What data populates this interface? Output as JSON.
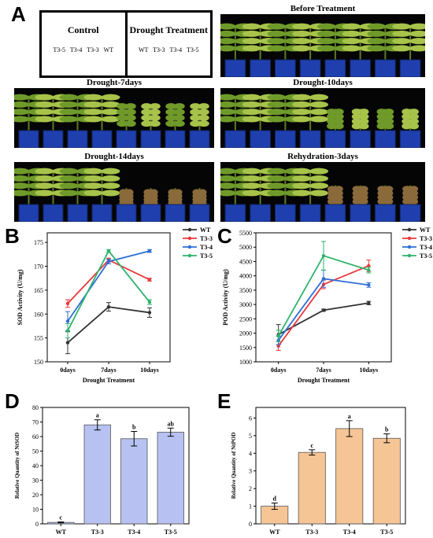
{
  "panel_letters": {
    "a": "A",
    "b": "B",
    "c": "C",
    "d": "D",
    "e": "E"
  },
  "panel_a": {
    "control_title": "Control",
    "control_order": "T3-5 T3-4 T3-3 WT",
    "drought_title": "Drought Treatment",
    "drought_order": "WT T3-3 T3-4 T3-5",
    "photos": [
      {
        "title": "Before Treatment",
        "wilt_right": 0.0
      },
      {
        "title": "Drought-7days",
        "wilt_right": 0.2
      },
      {
        "title": "Drought-10days",
        "wilt_right": 0.45
      },
      {
        "title": "Drought-14days",
        "wilt_right": 0.75
      },
      {
        "title": "Rehydration-3days",
        "wilt_right": 0.6
      }
    ],
    "colors": {
      "background": "#050505",
      "pot": "#1f3fae",
      "pot_dark": "#11235e",
      "leaf": "#6f9a2a",
      "leaf_light": "#a7c34a",
      "dead": "#8a6a3a"
    }
  },
  "chart_data": [
    {
      "panel": "B",
      "type": "line",
      "x": [
        "0days",
        "7days",
        "10days"
      ],
      "xlabel": "Drought Treatment",
      "ylabel": "SOD Activity (U/mg)",
      "ylim": [
        150,
        177
      ],
      "yticks": [
        150,
        155,
        160,
        165,
        170,
        175
      ],
      "legend_position": "top-right",
      "series": [
        {
          "name": "WT",
          "color": "#333333",
          "values": [
            154.0,
            161.5,
            160.3
          ],
          "errors": [
            2.3,
            0.9,
            1.0
          ]
        },
        {
          "name": "T3-3",
          "color": "#e8393c",
          "values": [
            162.2,
            171.3,
            167.2
          ],
          "errors": [
            0.8,
            0.4,
            0.3
          ]
        },
        {
          "name": "T3-4",
          "color": "#2f6fd6",
          "values": [
            158.5,
            171.0,
            173.2
          ],
          "errors": [
            2.0,
            0.5,
            0.3
          ]
        },
        {
          "name": "T3-5",
          "color": "#2fb36b",
          "values": [
            156.5,
            173.2,
            162.5
          ],
          "errors": [
            1.5,
            0.3,
            0.5
          ]
        }
      ]
    },
    {
      "panel": "C",
      "type": "line",
      "x": [
        "0days",
        "7days",
        "10days"
      ],
      "xlabel": "Drought Treatment",
      "ylabel": "POD Activity (U/mg)",
      "ylim": [
        1000,
        5500
      ],
      "yticks": [
        1000,
        1500,
        2000,
        2500,
        3000,
        3500,
        4000,
        4500,
        5000,
        5500
      ],
      "legend_position": "top-right",
      "series": [
        {
          "name": "WT",
          "color": "#333333",
          "values": [
            1950,
            2800,
            3050
          ],
          "errors": [
            350,
            40,
            60
          ]
        },
        {
          "name": "T3-3",
          "color": "#e8393c",
          "values": [
            1550,
            3700,
            4350
          ],
          "errors": [
            150,
            150,
            200
          ]
        },
        {
          "name": "T3-4",
          "color": "#2f6fd6",
          "values": [
            1750,
            3900,
            3680
          ],
          "errors": [
            150,
            300,
            80
          ]
        },
        {
          "name": "T3-5",
          "color": "#2fb36b",
          "values": [
            1900,
            4700,
            4200
          ],
          "errors": [
            200,
            500,
            100
          ]
        }
      ]
    },
    {
      "panel": "D",
      "type": "bar",
      "categories": [
        "WT",
        "T3-3",
        "T3-4",
        "T3-5"
      ],
      "values": [
        1,
        68,
        58.5,
        63
      ],
      "errors": [
        0.3,
        3.5,
        5.0,
        2.8
      ],
      "letters": [
        "c",
        "a",
        "b",
        "ab"
      ],
      "xlabel": "",
      "ylabel": "Relative Quantity of NtSOD",
      "ylim": [
        0,
        80
      ],
      "yticks": [
        0,
        10,
        20,
        30,
        40,
        50,
        60,
        70,
        80
      ],
      "bar_color": "#b8c2f2"
    },
    {
      "panel": "E",
      "type": "bar",
      "categories": [
        "WT",
        "T3-3",
        "T3-4",
        "T3-5"
      ],
      "values": [
        1.0,
        4.05,
        5.4,
        4.85
      ],
      "errors": [
        0.18,
        0.15,
        0.45,
        0.25
      ],
      "letters": [
        "d",
        "c",
        "a",
        "b"
      ],
      "xlabel": "",
      "ylabel": "Relative Quantity of NtPOD",
      "ylim": [
        0,
        6.6
      ],
      "yticks": [
        0,
        1,
        2,
        3,
        4,
        5,
        6
      ],
      "bar_color": "#f6c595"
    }
  ]
}
